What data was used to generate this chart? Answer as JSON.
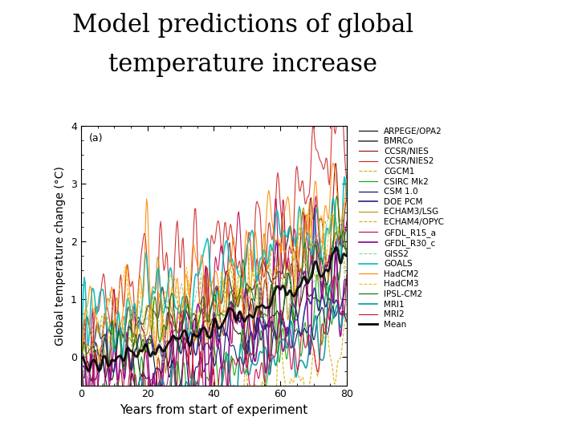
{
  "title_line1": "Model predictions of global",
  "title_line2": "temperature increase",
  "title_fontsize": 22,
  "xlabel": "Years from start of experiment",
  "ylabel": "Global temperature change (°C)",
  "xlabel_fontsize": 11,
  "ylabel_fontsize": 10,
  "xlim": [
    0,
    80
  ],
  "ylim": [
    -0.5,
    4
  ],
  "yticks": [
    0,
    1,
    2,
    3,
    4
  ],
  "xticks": [
    0,
    20,
    40,
    60,
    80
  ],
  "panel_label": "(a)",
  "models": [
    {
      "name": "ARPEGE/OPA2",
      "color": "#000000",
      "lw": 0.8,
      "ls": "-",
      "seed": 1,
      "scale": 1.55,
      "noise": 0.18
    },
    {
      "name": "BMRCo",
      "color": "#444444",
      "lw": 1.2,
      "ls": "-",
      "seed": 2,
      "scale": 1.5,
      "noise": 0.15
    },
    {
      "name": "CCSR/NIES",
      "color": "#990000",
      "lw": 0.8,
      "ls": "-",
      "seed": 3,
      "scale": 3.8,
      "noise": 0.4
    },
    {
      "name": "CCSR/NIES2",
      "color": "#cc2222",
      "lw": 0.8,
      "ls": "-",
      "seed": 4,
      "scale": 2.7,
      "noise": 0.45
    },
    {
      "name": "CGCM1",
      "color": "#bbbb00",
      "lw": 0.8,
      "ls": "--",
      "seed": 5,
      "scale": 1.9,
      "noise": 0.25
    },
    {
      "name": "CSIRC Mk2",
      "color": "#00aa00",
      "lw": 0.8,
      "ls": "-",
      "seed": 6,
      "scale": 1.8,
      "noise": 0.28
    },
    {
      "name": "CSM 1.0",
      "color": "#000066",
      "lw": 0.8,
      "ls": "-",
      "seed": 7,
      "scale": 1.2,
      "noise": 0.18
    },
    {
      "name": "DOE PCM",
      "color": "#222288",
      "lw": 1.2,
      "ls": "-",
      "seed": 8,
      "scale": 1.0,
      "noise": 0.15
    },
    {
      "name": "ECHAM3/LSG",
      "color": "#cc8800",
      "lw": 0.8,
      "ls": "-",
      "seed": 9,
      "scale": 2.0,
      "noise": 0.35
    },
    {
      "name": "ECHAM4/OPYC",
      "color": "#ddaa00",
      "lw": 0.8,
      "ls": "--",
      "seed": 10,
      "scale": 1.85,
      "noise": 0.3
    },
    {
      "name": "GFDL_R15_a",
      "color": "#bb0055",
      "lw": 0.8,
      "ls": "-",
      "seed": 11,
      "scale": 2.8,
      "noise": 0.55
    },
    {
      "name": "GFDL_R30_c",
      "color": "#880088",
      "lw": 1.2,
      "ls": "-",
      "seed": 12,
      "scale": 1.9,
      "noise": 0.4
    },
    {
      "name": "GISS2",
      "color": "#99cc99",
      "lw": 0.8,
      "ls": "--",
      "seed": 13,
      "scale": 1.55,
      "noise": 0.22
    },
    {
      "name": "GOALS",
      "color": "#00bbbb",
      "lw": 1.2,
      "ls": "-",
      "seed": 14,
      "scale": 1.65,
      "noise": 0.28
    },
    {
      "name": "HadCM2",
      "color": "#ff8800",
      "lw": 0.8,
      "ls": "-",
      "seed": 15,
      "scale": 2.0,
      "noise": 0.35
    },
    {
      "name": "HadCM3",
      "color": "#ffbb00",
      "lw": 0.8,
      "ls": "--",
      "seed": 16,
      "scale": 1.8,
      "noise": 0.3
    },
    {
      "name": "IPSL-CM2",
      "color": "#007700",
      "lw": 0.8,
      "ls": "-",
      "seed": 17,
      "scale": 1.6,
      "noise": 0.25
    },
    {
      "name": "MRI1",
      "color": "#009999",
      "lw": 1.2,
      "ls": "-",
      "seed": 18,
      "scale": 1.5,
      "noise": 0.22
    },
    {
      "name": "MRI2",
      "color": "#cc0044",
      "lw": 0.8,
      "ls": "-",
      "seed": 19,
      "scale": 1.4,
      "noise": 0.28
    },
    {
      "name": "Mean",
      "color": "#000000",
      "lw": 2.0,
      "ls": "-",
      "seed": 99,
      "scale": 1.7,
      "noise": 0.0
    }
  ],
  "background_color": "#ffffff",
  "legend_fontsize": 7.5,
  "fig_width": 7.2,
  "fig_height": 5.4,
  "dpi": 100
}
